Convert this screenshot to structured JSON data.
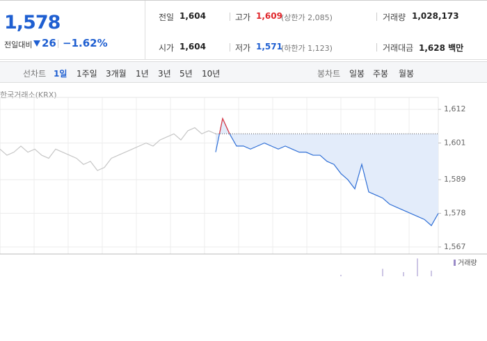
{
  "quote": {
    "price": "1,578",
    "change_label": "전일대비",
    "change": "26",
    "change_pct": "−1.62%"
  },
  "stats": [
    {
      "label": "전일",
      "value": "1,604"
    },
    {
      "label": "고가",
      "value": "1,609",
      "note": "(상한가 2,085)"
    },
    {
      "label": "거래량",
      "value": "1,028,173"
    },
    {
      "label": "시가",
      "value": "1,604"
    },
    {
      "label": "저가",
      "value": "1,571",
      "note": "(하한가 1,123)"
    },
    {
      "label": "거래대금",
      "value": "1,628 백만"
    }
  ],
  "tabs": {
    "line_label": "선차트",
    "line": [
      "1일",
      "1주일",
      "3개월",
      "1년",
      "3년",
      "5년",
      "10년"
    ],
    "candle_label": "봉차트",
    "candle": [
      "일봉",
      "주봉",
      "월봉"
    ]
  },
  "chart_data": {
    "type": "line",
    "subtitle": "한국거래소(KRX)",
    "ylim": [
      1564.7,
      1615.9
    ],
    "yticks": [
      {
        "value": 1567,
        "label": "1,567"
      },
      {
        "value": 1578,
        "label": "1,578"
      },
      {
        "value": 1589,
        "label": "1,589"
      },
      {
        "value": 1601,
        "label": "1,601"
      },
      {
        "value": 1612,
        "label": "1,612"
      }
    ],
    "baseline": 1604,
    "grid": true,
    "series": [
      {
        "color": "#c6c6c6",
        "values": [
          1599,
          1597,
          1598,
          1600,
          1598,
          1599,
          1597,
          1596,
          1599,
          1598,
          1597,
          1596,
          1594,
          1595,
          1592,
          1593,
          1596,
          1597,
          1598,
          1599,
          1600,
          1601,
          1600,
          1602,
          1603,
          1604,
          1602,
          1605,
          1606,
          1604,
          1605,
          1604,
          null,
          null,
          null,
          null,
          null,
          null,
          null,
          null,
          null,
          null,
          null,
          null,
          null,
          null,
          null,
          null,
          null,
          null,
          null,
          null,
          null,
          null,
          null,
          null,
          null,
          null,
          null,
          null,
          null,
          null,
          null,
          null
        ]
      },
      {
        "color": "#2f6fd6",
        "color_above": "#e8393d",
        "fill": "#e3ecfa",
        "values": [
          null,
          null,
          null,
          null,
          null,
          null,
          null,
          null,
          null,
          null,
          null,
          null,
          null,
          null,
          null,
          null,
          null,
          null,
          null,
          null,
          null,
          null,
          null,
          null,
          null,
          null,
          null,
          null,
          null,
          null,
          null,
          1598,
          1609,
          1604,
          1600,
          1600,
          1599,
          1600,
          1601,
          1600,
          1599,
          1600,
          1599,
          1598,
          1598,
          1597,
          1597,
          1595,
          1594,
          1591,
          1589,
          1586,
          1594,
          1585,
          1584,
          1583,
          1581,
          1580,
          1579,
          1578,
          1577,
          1576,
          1574,
          1578
        ]
      }
    ],
    "volume": {
      "label": "거래량",
      "color": "#9a8bc8",
      "x": [
        49,
        55,
        58,
        60,
        62
      ],
      "values": [
        8,
        40,
        22,
        95,
        30
      ],
      "ylim": [
        0,
        100
      ]
    }
  }
}
